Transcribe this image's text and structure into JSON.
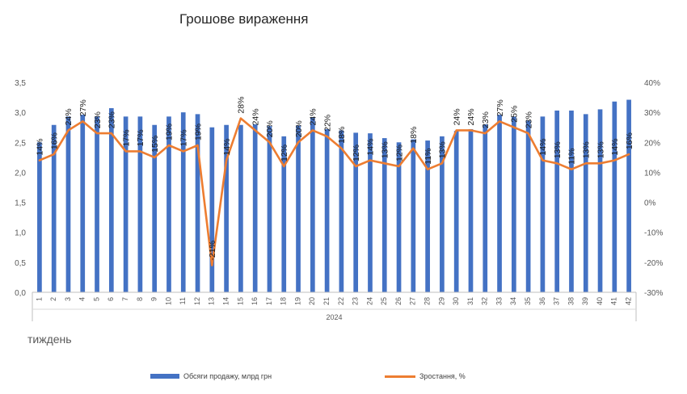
{
  "chart_data": {
    "type": "bar",
    "title": "Грошове вираження",
    "xlabel": "тиждень",
    "x_group_label": "2024",
    "categories": [
      "1",
      "2",
      "3",
      "4",
      "5",
      "6",
      "7",
      "8",
      "9",
      "10",
      "11",
      "12",
      "13",
      "14",
      "15",
      "16",
      "17",
      "18",
      "19",
      "20",
      "21",
      "22",
      "23",
      "24",
      "25",
      "26",
      "27",
      "28",
      "29",
      "30",
      "31",
      "32",
      "33",
      "34",
      "35",
      "36",
      "37",
      "38",
      "39",
      "40",
      "41",
      "42"
    ],
    "y_left": {
      "min": 0,
      "max": 3.5,
      "step": 0.5,
      "tick_labels": [
        "0,0",
        "0,5",
        "1,0",
        "1,5",
        "2,0",
        "2,5",
        "3,0",
        "3,5"
      ]
    },
    "y_right": {
      "min": -30,
      "max": 40,
      "step": 10,
      "tick_labels": [
        "-30%",
        "-20%",
        "-10%",
        "0%",
        "10%",
        "20%",
        "30%",
        "40%"
      ]
    },
    "series": [
      {
        "name": "Обсяги продажу, млрд грн",
        "kind": "bar",
        "axis": "left",
        "color": "#4472C4",
        "values": [
          2.5,
          2.79,
          2.93,
          2.96,
          2.93,
          3.07,
          2.93,
          2.93,
          2.79,
          2.93,
          3.0,
          2.97,
          2.75,
          2.79,
          2.79,
          2.8,
          2.77,
          2.6,
          2.78,
          2.92,
          2.72,
          2.7,
          2.66,
          2.65,
          2.57,
          2.5,
          2.55,
          2.53,
          2.6,
          2.69,
          2.72,
          2.8,
          2.96,
          2.93,
          2.86,
          2.93,
          3.03,
          3.03,
          2.97,
          3.05,
          3.18,
          3.21
        ]
      },
      {
        "name": "Зростання, %",
        "kind": "line",
        "axis": "right",
        "color": "#ED7D31",
        "values": [
          14,
          16,
          24,
          27,
          23,
          23,
          17,
          17,
          15,
          19,
          17,
          19,
          -21,
          14,
          28,
          24,
          20,
          12,
          20,
          24,
          22,
          18,
          12,
          14,
          13,
          12,
          18,
          11,
          13,
          24,
          24,
          23,
          27,
          25,
          23,
          14,
          13,
          11,
          13,
          13,
          14,
          16
        ],
        "data_labels": [
          "14%",
          "16%",
          "24%",
          "27%",
          "23%",
          "23%",
          "17%",
          "17%",
          "15%",
          "19%",
          "17%",
          "19%",
          "-21%",
          "14%",
          "28%",
          "24%",
          "20%",
          "12%",
          "20%",
          "24%",
          "22%",
          "18%",
          "12%",
          "14%",
          "13%",
          "12%",
          "18%",
          "11%",
          "13%",
          "24%",
          "24%",
          "23%",
          "27%",
          "25%",
          "23%",
          "14%",
          "13%",
          "11%",
          "13%",
          "13%",
          "14%",
          "16%"
        ]
      }
    ],
    "legend_placement": "bottom",
    "grid": false
  }
}
